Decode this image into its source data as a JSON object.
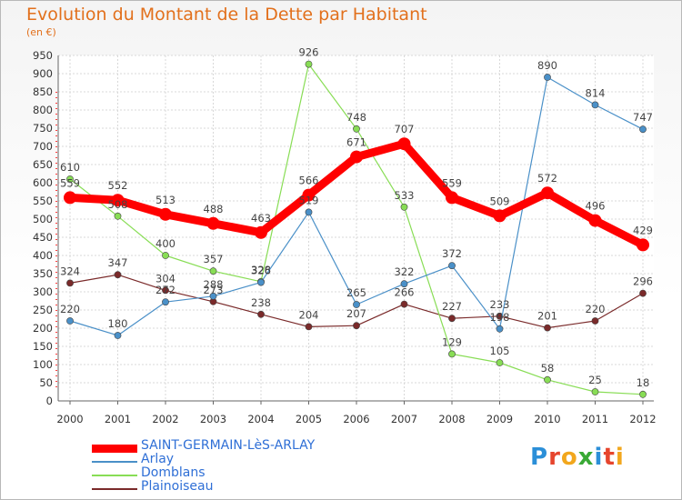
{
  "title": "Evolution du Montant de la Dette par Habitant",
  "unit": "(en €)",
  "logo": [
    "P",
    "r",
    "o",
    "x",
    "i",
    "t",
    "i"
  ],
  "logo_colors": [
    "#2b8fd8",
    "#e6452d",
    "#f2a71d",
    "#39a935",
    "#2b8fd8",
    "#e6452d",
    "#f2a71d"
  ],
  "chart_data": {
    "type": "line",
    "x": [
      "2000",
      "2001",
      "2002",
      "2003",
      "2004",
      "2005",
      "2006",
      "2007",
      "2008",
      "2009",
      "2010",
      "2011",
      "2012"
    ],
    "ylim": [
      0,
      950
    ],
    "yticks": [
      "0",
      "50",
      "100",
      "150",
      "200",
      "250",
      "300",
      "350",
      "400",
      "450",
      "500",
      "550",
      "600",
      "650",
      "700",
      "750",
      "800",
      "850",
      "900",
      "950"
    ],
    "grid": true,
    "legend_position": "bottom-left",
    "series": [
      {
        "name": "SAINT-GERMAIN-LèS-ARLAY",
        "color": "#ff0000",
        "values": [
          559,
          552,
          513,
          488,
          463,
          566,
          671,
          707,
          559,
          509,
          572,
          496,
          429
        ],
        "labels": [
          "559",
          "552",
          "513",
          "488",
          "463",
          "566",
          "671",
          "707",
          "559",
          "509",
          "572",
          "496",
          "429"
        ]
      },
      {
        "name": "Arlay",
        "color": "#4a90c8",
        "values": [
          220,
          180,
          272,
          288,
          326,
          519,
          265,
          322,
          372,
          198,
          890,
          814,
          747
        ],
        "labels": [
          "220",
          "180",
          "272",
          "288",
          "326",
          "519",
          "265",
          "322",
          "372",
          "198",
          "890",
          "814",
          "747"
        ]
      },
      {
        "name": "Domblans",
        "color": "#88dd55",
        "values": [
          610,
          508,
          400,
          357,
          328,
          926,
          748,
          533,
          129,
          105,
          58,
          25,
          18
        ],
        "labels": [
          "610",
          "508",
          "400",
          "357",
          "328",
          "926",
          "748",
          "533",
          "129",
          "105",
          "58",
          "25",
          "18"
        ]
      },
      {
        "name": "Plainoiseau",
        "color": "#7a2a2a",
        "values": [
          324,
          347,
          304,
          273,
          238,
          204,
          207,
          266,
          227,
          233,
          201,
          220,
          296
        ],
        "labels": [
          "324",
          "347",
          "304",
          "273",
          "238",
          "204",
          "207",
          "266",
          "227",
          "233",
          "201",
          "220",
          "296"
        ]
      }
    ]
  }
}
